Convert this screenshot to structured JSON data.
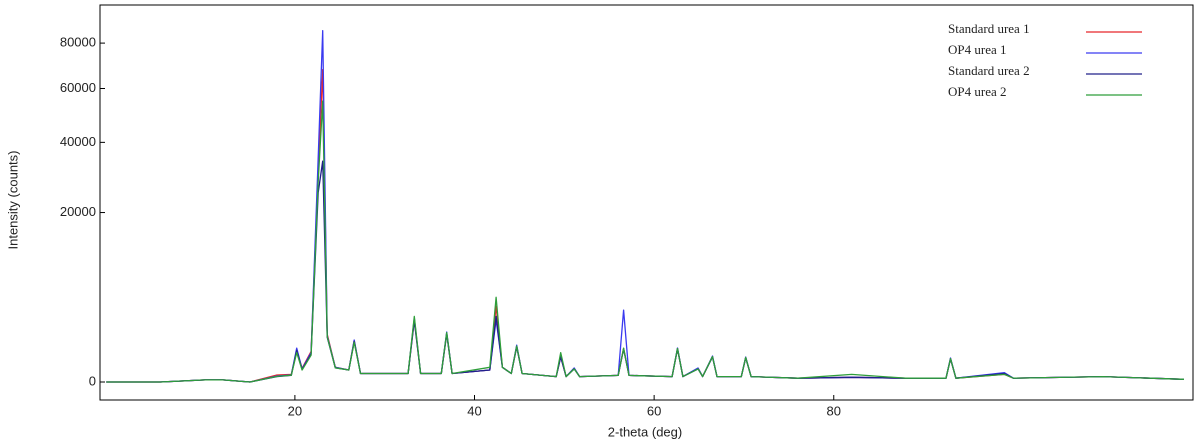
{
  "chart_data": {
    "type": "line",
    "xlabel": "2-theta (deg)",
    "ylabel": "Intensity (counts)",
    "yscale": "sqrt",
    "legend": "upper right",
    "xlim": [
      -1.7,
      120
    ],
    "xticks": [
      20,
      40,
      60,
      80
    ],
    "ylim": [
      -226,
      99000
    ],
    "yticks": [
      0,
      20000,
      40000,
      60000,
      80000
    ],
    "x": [
      -1,
      5,
      10,
      12,
      15,
      18,
      19.6,
      20.2,
      20.8,
      21.8,
      22.6,
      23.1,
      23.6,
      24.5,
      26,
      26.6,
      27.3,
      32.6,
      33.3,
      34,
      36.3,
      36.9,
      37.5,
      41.7,
      42.4,
      43.1,
      44.1,
      44.7,
      45.3,
      49.1,
      49.6,
      50.2,
      51.1,
      51.7,
      56,
      56.6,
      57.2,
      62,
      62.6,
      63.2,
      64.9,
      65.4,
      66.5,
      67,
      67.6,
      69.7,
      70.2,
      70.8,
      76,
      82,
      88,
      92.5,
      93,
      93.6,
      99,
      100,
      110,
      119
    ],
    "series": [
      {
        "name": "Standard urea 1",
        "color": "#e8262a",
        "values": [
          0,
          0,
          3,
          3,
          0,
          34,
          40,
          650,
          130,
          650,
          30000,
          68000,
          1600,
          150,
          100,
          1200,
          50,
          50,
          2700,
          50,
          50,
          1650,
          50,
          100,
          4000,
          150,
          50,
          900,
          50,
          20,
          450,
          20,
          130,
          20,
          30,
          780,
          30,
          20,
          780,
          20,
          130,
          20,
          450,
          20,
          20,
          20,
          420,
          20,
          10,
          15,
          10,
          10,
          380,
          10,
          40,
          10,
          20,
          5
        ]
      },
      {
        "name": "OP4 urea 1",
        "color": "#3a3af0",
        "values": [
          0,
          0,
          3,
          3,
          0,
          25,
          35,
          800,
          120,
          600,
          35000,
          86000,
          1500,
          150,
          100,
          1230,
          50,
          50,
          2850,
          50,
          50,
          1740,
          50,
          100,
          2700,
          150,
          50,
          950,
          50,
          20,
          470,
          20,
          137,
          20,
          30,
          3600,
          30,
          20,
          805,
          20,
          137,
          20,
          470,
          20,
          20,
          20,
          435,
          20,
          10,
          15,
          10,
          10,
          400,
          10,
          60,
          10,
          20,
          5
        ]
      },
      {
        "name": "Standard urea 2",
        "color": "#20208a",
        "values": [
          0,
          0,
          3,
          3,
          0,
          20,
          30,
          700,
          110,
          550,
          25000,
          34000,
          1400,
          140,
          100,
          1150,
          50,
          50,
          2600,
          50,
          50,
          1600,
          50,
          100,
          3000,
          150,
          50,
          850,
          50,
          20,
          430,
          20,
          120,
          20,
          30,
          760,
          30,
          20,
          760,
          20,
          120,
          20,
          430,
          20,
          20,
          20,
          400,
          20,
          10,
          15,
          10,
          10,
          370,
          10,
          50,
          10,
          20,
          5
        ]
      },
      {
        "name": "OP4 urea 2",
        "color": "#2e9e3a",
        "values": [
          0,
          0,
          3,
          3,
          0,
          22,
          32,
          600,
          100,
          500,
          28000,
          55000,
          1450,
          140,
          100,
          1100,
          50,
          50,
          3000,
          50,
          50,
          1700,
          50,
          150,
          5000,
          150,
          50,
          900,
          50,
          20,
          600,
          20,
          120,
          20,
          30,
          800,
          30,
          20,
          780,
          20,
          120,
          20,
          450,
          20,
          20,
          20,
          420,
          20,
          10,
          40,
          10,
          10,
          380,
          10,
          40,
          10,
          20,
          5
        ]
      }
    ]
  }
}
